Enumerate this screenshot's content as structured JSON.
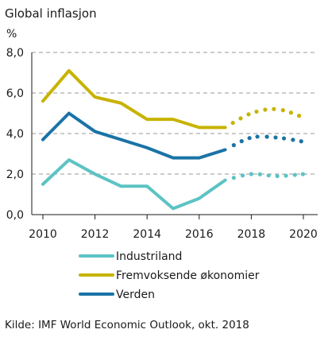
{
  "chart_data": {
    "type": "line",
    "title": "Global inflasjon",
    "ylabel": "%",
    "xlabel": "",
    "ylim": [
      0,
      8
    ],
    "y_ticks": [
      "0,0",
      "2,0",
      "4,0",
      "6,0",
      "8,0"
    ],
    "x_ticks": [
      "2010",
      "2012",
      "2014",
      "2016",
      "2018",
      "2020"
    ],
    "grid": true,
    "legend_position": "bottom",
    "forecast_from": 2017,
    "x": [
      2010,
      2011,
      2012,
      2013,
      2014,
      2015,
      2016,
      2017,
      2018,
      2019,
      2020
    ],
    "series": [
      {
        "name": "Industriland",
        "color": "#5cc3c4",
        "values": [
          1.5,
          2.7,
          2.0,
          1.4,
          1.4,
          0.3,
          0.8,
          1.7,
          2.0,
          1.9,
          2.0
        ]
      },
      {
        "name": "Fremvoksende økonomier",
        "color": "#c8b300",
        "values": [
          5.6,
          7.1,
          5.8,
          5.5,
          4.7,
          4.7,
          4.3,
          4.3,
          5.0,
          5.2,
          4.8
        ]
      },
      {
        "name": "Verden",
        "color": "#1a73a6",
        "values": [
          3.7,
          5.0,
          4.1,
          3.7,
          3.3,
          2.8,
          2.8,
          3.2,
          3.8,
          3.8,
          3.6
        ]
      }
    ],
    "source": "Kilde: IMF World Economic Outlook, okt. 2018"
  }
}
